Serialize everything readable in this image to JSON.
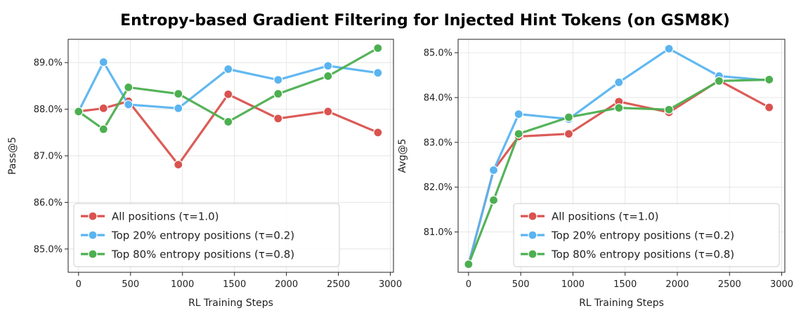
{
  "figure_title": "Entropy-based Gradient Filtering for Injected Hint Tokens (on GSM8K)",
  "colors": {
    "series_0": "#d9534f",
    "series_1": "#5ab4f0",
    "series_2": "#4caf50"
  },
  "chart_data": [
    {
      "type": "line",
      "title": "",
      "xlabel": "RL Training Steps",
      "ylabel": "Pass@5",
      "xlim": [
        -100,
        3030
      ],
      "ylim": [
        84.5,
        89.5
      ],
      "x_ticks": [
        0,
        500,
        1000,
        1500,
        2000,
        2500,
        3000
      ],
      "y_ticks": [
        85.0,
        86.0,
        87.0,
        88.0,
        89.0
      ],
      "y_tick_labels": [
        "85.0%",
        "86.0%",
        "87.0%",
        "88.0%",
        "89.0%"
      ],
      "grid": true,
      "legend_position": "lower-left",
      "x": [
        0,
        240,
        480,
        960,
        1440,
        1920,
        2400,
        2880
      ],
      "series": [
        {
          "name": "All positions (τ=1.0)",
          "values": [
            87.95,
            88.02,
            88.17,
            86.81,
            88.32,
            87.8,
            87.95,
            87.5
          ]
        },
        {
          "name": "Top 20% entropy positions (τ=0.2)",
          "values": [
            87.95,
            89.01,
            88.1,
            88.02,
            88.86,
            88.63,
            88.93,
            88.78
          ]
        },
        {
          "name": "Top 80% entropy positions (τ=0.8)",
          "values": [
            87.95,
            87.57,
            88.47,
            88.33,
            87.73,
            88.33,
            88.71,
            89.31
          ]
        }
      ]
    },
    {
      "type": "line",
      "title": "",
      "xlabel": "RL Training Steps",
      "ylabel": "Avg@5",
      "xlim": [
        -100,
        3030
      ],
      "ylim": [
        80.1,
        85.3
      ],
      "x_ticks": [
        0,
        500,
        1000,
        1500,
        2000,
        2500,
        3000
      ],
      "y_ticks": [
        81.0,
        82.0,
        83.0,
        84.0,
        85.0
      ],
      "y_tick_labels": [
        "81.0%",
        "82.0%",
        "83.0%",
        "84.0%",
        "85.0%"
      ],
      "grid": true,
      "legend_position": "lower-right",
      "x": [
        0,
        240,
        480,
        960,
        1440,
        1920,
        2400,
        2880
      ],
      "series": [
        {
          "name": "All positions (τ=1.0)",
          "values": [
            80.28,
            82.38,
            83.13,
            83.19,
            83.91,
            83.67,
            84.38,
            83.78
          ]
        },
        {
          "name": "Top 20% entropy positions (τ=0.2)",
          "values": [
            80.28,
            82.38,
            83.63,
            83.52,
            84.34,
            85.09,
            84.48,
            84.38
          ]
        },
        {
          "name": "Top 80% entropy positions (τ=0.8)",
          "values": [
            80.28,
            81.71,
            83.19,
            83.56,
            83.77,
            83.73,
            84.37,
            84.4
          ]
        }
      ]
    }
  ]
}
